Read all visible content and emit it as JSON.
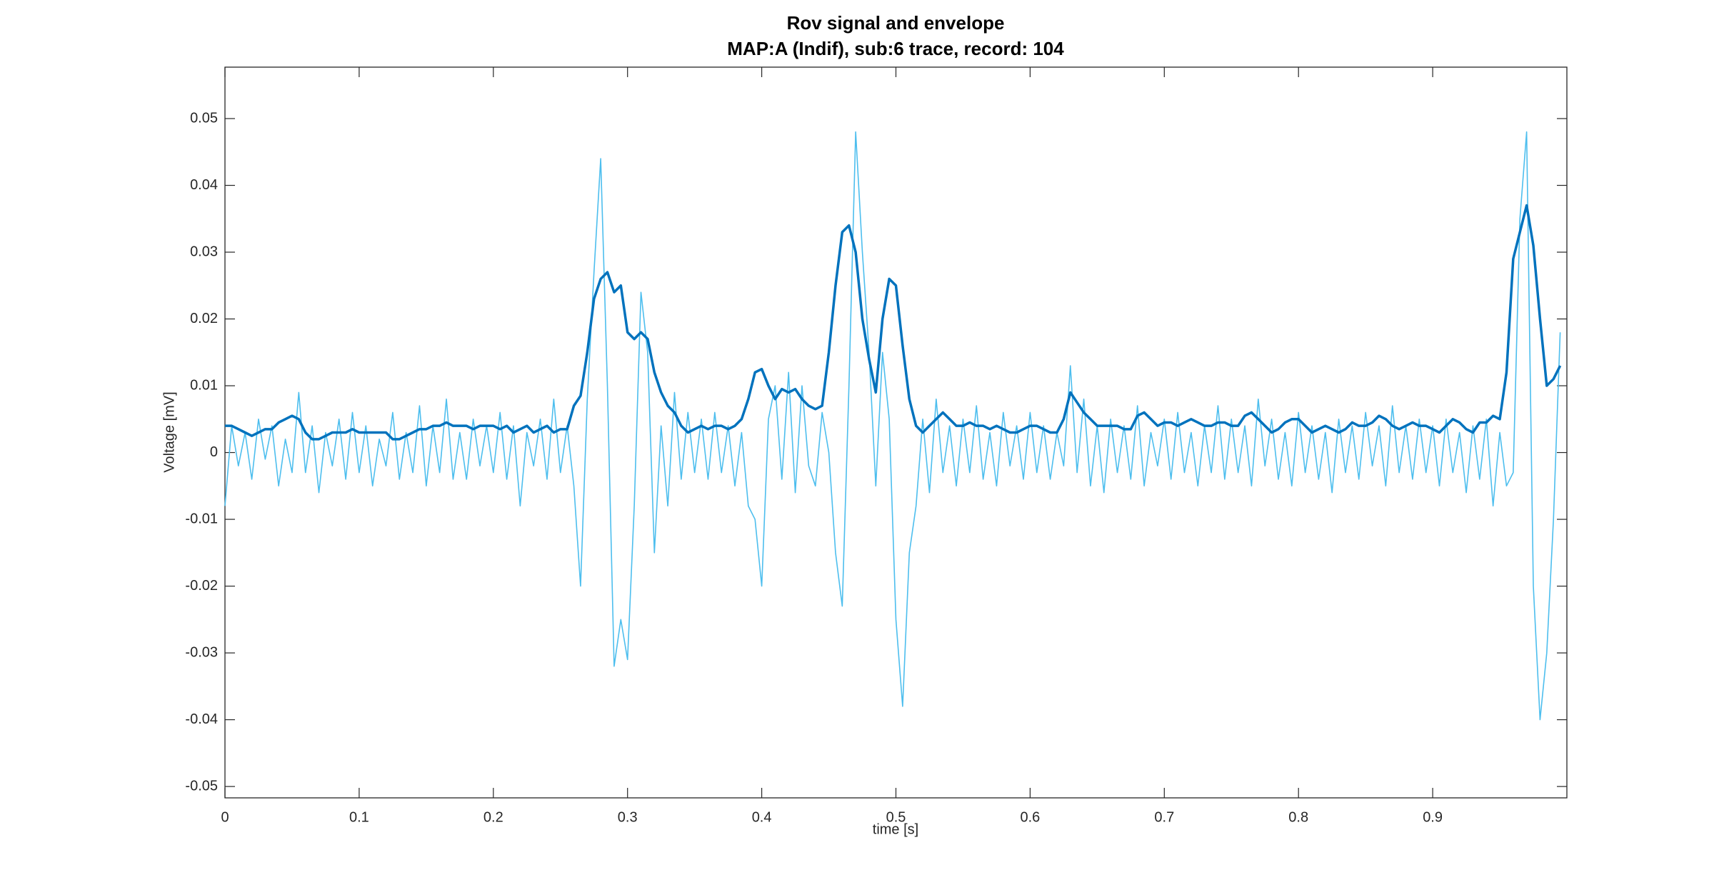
{
  "chart_data": {
    "type": "line",
    "title": "Rov signal and envelope",
    "subtitle": "MAP:A (Indif), sub:6 trace, record: 104",
    "xlabel": "time [s]",
    "ylabel": "Voltage [mV]",
    "xlim": [
      0,
      1.0
    ],
    "ylim": [
      -0.0517,
      0.0577
    ],
    "xticks": [
      0,
      0.1,
      0.2,
      0.3,
      0.4,
      0.5,
      0.6,
      0.7,
      0.8,
      0.9
    ],
    "yticks": [
      -0.05,
      -0.04,
      -0.03,
      -0.02,
      -0.01,
      0,
      0.01,
      0.02,
      0.03,
      0.04,
      0.05
    ],
    "box": true,
    "x": [
      0,
      0.005,
      0.01,
      0.015,
      0.02,
      0.025,
      0.03,
      0.035,
      0.04,
      0.045,
      0.05,
      0.055,
      0.06,
      0.065,
      0.07,
      0.075,
      0.08,
      0.085,
      0.09,
      0.095,
      0.1,
      0.105,
      0.11,
      0.115,
      0.12,
      0.125,
      0.13,
      0.135,
      0.14,
      0.145,
      0.15,
      0.155,
      0.16,
      0.165,
      0.17,
      0.175,
      0.18,
      0.185,
      0.19,
      0.195,
      0.2,
      0.205,
      0.21,
      0.215,
      0.22,
      0.225,
      0.23,
      0.235,
      0.24,
      0.245,
      0.25,
      0.255,
      0.26,
      0.265,
      0.27,
      0.275,
      0.28,
      0.285,
      0.29,
      0.295,
      0.3,
      0.305,
      0.31,
      0.315,
      0.32,
      0.325,
      0.33,
      0.335,
      0.34,
      0.345,
      0.35,
      0.355,
      0.36,
      0.365,
      0.37,
      0.375,
      0.38,
      0.385,
      0.39,
      0.395,
      0.4,
      0.405,
      0.41,
      0.415,
      0.42,
      0.425,
      0.43,
      0.435,
      0.44,
      0.445,
      0.45,
      0.455,
      0.46,
      0.465,
      0.47,
      0.475,
      0.48,
      0.485,
      0.49,
      0.495,
      0.5,
      0.505,
      0.51,
      0.515,
      0.52,
      0.525,
      0.53,
      0.535,
      0.54,
      0.545,
      0.55,
      0.555,
      0.56,
      0.565,
      0.57,
      0.575,
      0.58,
      0.585,
      0.59,
      0.595,
      0.6,
      0.605,
      0.61,
      0.615,
      0.62,
      0.625,
      0.63,
      0.635,
      0.64,
      0.645,
      0.65,
      0.655,
      0.66,
      0.665,
      0.67,
      0.675,
      0.68,
      0.685,
      0.69,
      0.695,
      0.7,
      0.705,
      0.71,
      0.715,
      0.72,
      0.725,
      0.73,
      0.735,
      0.74,
      0.745,
      0.75,
      0.755,
      0.76,
      0.765,
      0.77,
      0.775,
      0.78,
      0.785,
      0.79,
      0.795,
      0.8,
      0.805,
      0.81,
      0.815,
      0.82,
      0.825,
      0.83,
      0.835,
      0.84,
      0.845,
      0.85,
      0.855,
      0.86,
      0.865,
      0.87,
      0.875,
      0.88,
      0.885,
      0.89,
      0.895,
      0.9,
      0.905,
      0.91,
      0.915,
      0.92,
      0.925,
      0.93,
      0.935,
      0.94,
      0.945,
      0.95,
      0.955,
      0.96,
      0.965,
      0.97,
      0.975,
      0.98,
      0.985,
      0.99,
      0.995
    ],
    "series": [
      {
        "color": "#4DBEEE",
        "width": 1.6,
        "values": [
          -0.008,
          0.004,
          -0.002,
          0.003,
          -0.004,
          0.005,
          -0.001,
          0.004,
          -0.005,
          0.002,
          -0.003,
          0.009,
          -0.003,
          0.004,
          -0.006,
          0.003,
          -0.002,
          0.005,
          -0.004,
          0.006,
          -0.003,
          0.004,
          -0.005,
          0.002,
          -0.002,
          0.006,
          -0.004,
          0.003,
          -0.003,
          0.007,
          -0.005,
          0.004,
          -0.003,
          0.008,
          -0.004,
          0.003,
          -0.004,
          0.005,
          -0.002,
          0.004,
          -0.003,
          0.006,
          -0.004,
          0.004,
          -0.008,
          0.003,
          -0.002,
          0.005,
          -0.004,
          0.008,
          -0.003,
          0.004,
          -0.005,
          -0.02,
          0.008,
          0.027,
          0.044,
          0.01,
          -0.032,
          -0.025,
          -0.031,
          -0.008,
          0.024,
          0.015,
          -0.015,
          0.004,
          -0.008,
          0.009,
          -0.004,
          0.006,
          -0.003,
          0.005,
          -0.004,
          0.006,
          -0.003,
          0.004,
          -0.005,
          0.003,
          -0.008,
          -0.01,
          -0.02,
          0.005,
          0.01,
          -0.004,
          0.012,
          -0.006,
          0.01,
          -0.002,
          -0.005,
          0.006,
          0.0,
          -0.015,
          -0.023,
          0.01,
          0.048,
          0.03,
          0.015,
          -0.005,
          0.015,
          0.005,
          -0.025,
          -0.038,
          -0.015,
          -0.008,
          0.005,
          -0.006,
          0.008,
          -0.003,
          0.004,
          -0.005,
          0.005,
          -0.003,
          0.007,
          -0.004,
          0.003,
          -0.005,
          0.006,
          -0.002,
          0.004,
          -0.004,
          0.006,
          -0.003,
          0.004,
          -0.004,
          0.003,
          -0.002,
          0.013,
          -0.003,
          0.008,
          -0.005,
          0.004,
          -0.006,
          0.005,
          -0.003,
          0.004,
          -0.004,
          0.007,
          -0.005,
          0.003,
          -0.002,
          0.005,
          -0.004,
          0.006,
          -0.003,
          0.003,
          -0.005,
          0.004,
          -0.003,
          0.007,
          -0.004,
          0.005,
          -0.003,
          0.004,
          -0.005,
          0.008,
          -0.002,
          0.005,
          -0.004,
          0.003,
          -0.005,
          0.006,
          -0.003,
          0.004,
          -0.004,
          0.003,
          -0.006,
          0.005,
          -0.003,
          0.004,
          -0.004,
          0.006,
          -0.002,
          0.004,
          -0.005,
          0.007,
          -0.003,
          0.004,
          -0.004,
          0.005,
          -0.003,
          0.004,
          -0.005,
          0.005,
          -0.003,
          0.003,
          -0.006,
          0.004,
          -0.004,
          0.005,
          -0.008,
          0.003,
          -0.005,
          -0.003,
          0.035,
          0.048,
          -0.02,
          -0.04,
          -0.03,
          -0.01,
          0.018
        ]
      },
      {
        "color": "#0072BD",
        "width": 3.5,
        "values": [
          0.004,
          0.004,
          0.0035,
          0.003,
          0.0025,
          0.003,
          0.0035,
          0.0035,
          0.0045,
          0.005,
          0.0055,
          0.005,
          0.003,
          0.002,
          0.002,
          0.0025,
          0.003,
          0.003,
          0.003,
          0.0035,
          0.003,
          0.003,
          0.003,
          0.003,
          0.003,
          0.002,
          0.002,
          0.0025,
          0.003,
          0.0035,
          0.0035,
          0.004,
          0.004,
          0.0045,
          0.004,
          0.004,
          0.004,
          0.0035,
          0.004,
          0.004,
          0.004,
          0.0035,
          0.004,
          0.003,
          0.0035,
          0.004,
          0.003,
          0.0035,
          0.004,
          0.003,
          0.0035,
          0.0035,
          0.007,
          0.0085,
          0.015,
          0.023,
          0.026,
          0.027,
          0.024,
          0.025,
          0.018,
          0.017,
          0.018,
          0.017,
          0.012,
          0.009,
          0.007,
          0.006,
          0.004,
          0.003,
          0.0035,
          0.004,
          0.0035,
          0.004,
          0.004,
          0.0035,
          0.004,
          0.005,
          0.008,
          0.012,
          0.0125,
          0.01,
          0.008,
          0.0095,
          0.009,
          0.0095,
          0.008,
          0.007,
          0.0065,
          0.007,
          0.015,
          0.025,
          0.033,
          0.034,
          0.03,
          0.02,
          0.014,
          0.009,
          0.02,
          0.026,
          0.025,
          0.016,
          0.008,
          0.004,
          0.003,
          0.004,
          0.005,
          0.006,
          0.005,
          0.004,
          0.004,
          0.0045,
          0.004,
          0.004,
          0.0035,
          0.004,
          0.0035,
          0.003,
          0.003,
          0.0035,
          0.004,
          0.004,
          0.0035,
          0.003,
          0.003,
          0.005,
          0.009,
          0.0075,
          0.006,
          0.005,
          0.004,
          0.004,
          0.004,
          0.004,
          0.0035,
          0.0035,
          0.0055,
          0.006,
          0.005,
          0.004,
          0.0045,
          0.0045,
          0.004,
          0.0045,
          0.005,
          0.0045,
          0.004,
          0.004,
          0.0045,
          0.0045,
          0.004,
          0.004,
          0.0055,
          0.006,
          0.005,
          0.004,
          0.003,
          0.0035,
          0.0045,
          0.005,
          0.005,
          0.004,
          0.003,
          0.0035,
          0.004,
          0.0035,
          0.003,
          0.0035,
          0.0045,
          0.004,
          0.004,
          0.0045,
          0.0055,
          0.005,
          0.004,
          0.0035,
          0.004,
          0.0045,
          0.004,
          0.004,
          0.0035,
          0.003,
          0.004,
          0.005,
          0.0045,
          0.0035,
          0.003,
          0.0045,
          0.0045,
          0.0055,
          0.005,
          0.012,
          0.029,
          0.033,
          0.037,
          0.031,
          0.02,
          0.01,
          0.011,
          0.013
        ]
      }
    ]
  }
}
